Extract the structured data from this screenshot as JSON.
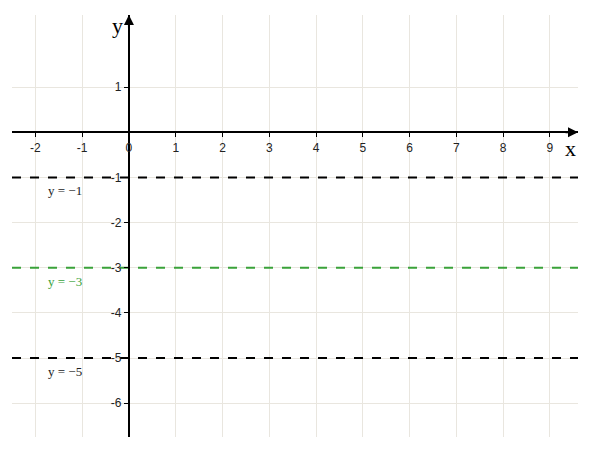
{
  "chart_data": {
    "type": "line",
    "xlabel": "x",
    "ylabel": "y",
    "xlim": [
      -2.5,
      9.6
    ],
    "ylim": [
      -6.75,
      2.6
    ],
    "xticks": [
      -2,
      -1,
      0,
      1,
      2,
      3,
      4,
      5,
      6,
      7,
      8,
      9
    ],
    "yticks": [
      -6,
      -5,
      -4,
      -3,
      -2,
      -1,
      1
    ],
    "grid": true,
    "series": [
      {
        "name": "y = −1",
        "color": "#000000",
        "line_style": "dashed",
        "x": [
          -2.5,
          9.6
        ],
        "values": [
          -1,
          -1
        ]
      },
      {
        "name": "y = −3",
        "color": "#3aa23a",
        "line_style": "dashed",
        "x": [
          -2.5,
          9.6
        ],
        "values": [
          -3,
          -3
        ]
      },
      {
        "name": "y = −5",
        "color": "#000000",
        "line_style": "dashed",
        "x": [
          -2.5,
          9.6
        ],
        "values": [
          -5,
          -5
        ]
      }
    ]
  }
}
